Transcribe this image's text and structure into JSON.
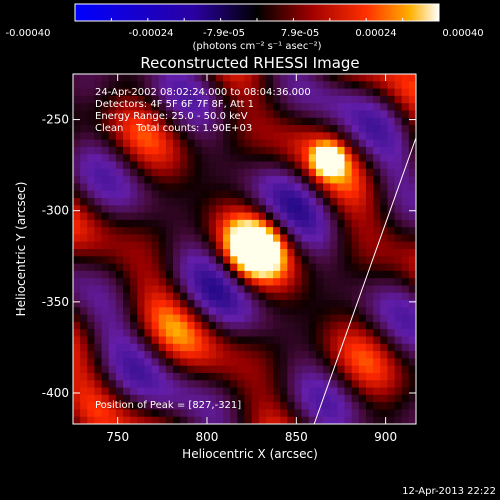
{
  "colorbar": {
    "ticks": [
      "-0.00040",
      "-0.00024",
      "-7.9e-05",
      "7.9e-05",
      "0.00024",
      "0.00040"
    ],
    "units": "(photons cm⁻² s⁻¹ asec⁻²)",
    "range": [
      -0.0004,
      0.0004
    ]
  },
  "chart_data": {
    "type": "heatmap",
    "title": "Reconstructed RHESSI Image",
    "xlabel": "Heliocentric X (arcsec)",
    "ylabel": "Heliocentric Y (arcsec)",
    "xlim": [
      725,
      917
    ],
    "ylim": [
      -417,
      -225
    ],
    "x_ticks": [
      750,
      800,
      850,
      900
    ],
    "y_ticks": [
      -250,
      -300,
      -350,
      -400
    ],
    "peak": {
      "x": 827,
      "y": -321
    },
    "annotations": [
      "24-Apr-2002 08:02:24.000 to 08:04:36.000",
      "Detectors: 4F 5F 6F 7F 8F, Att 1",
      "Energy Range: 25.0 - 50.0 keV",
      "Clean    Total counts: 1.90E+03"
    ],
    "peak_label": "Position of Peak = [827,-321]",
    "limb": [
      [
        917,
        -260
      ],
      [
        860,
        -417
      ]
    ]
  },
  "footer": {
    "date": "12-Apr-2013 22:22"
  }
}
